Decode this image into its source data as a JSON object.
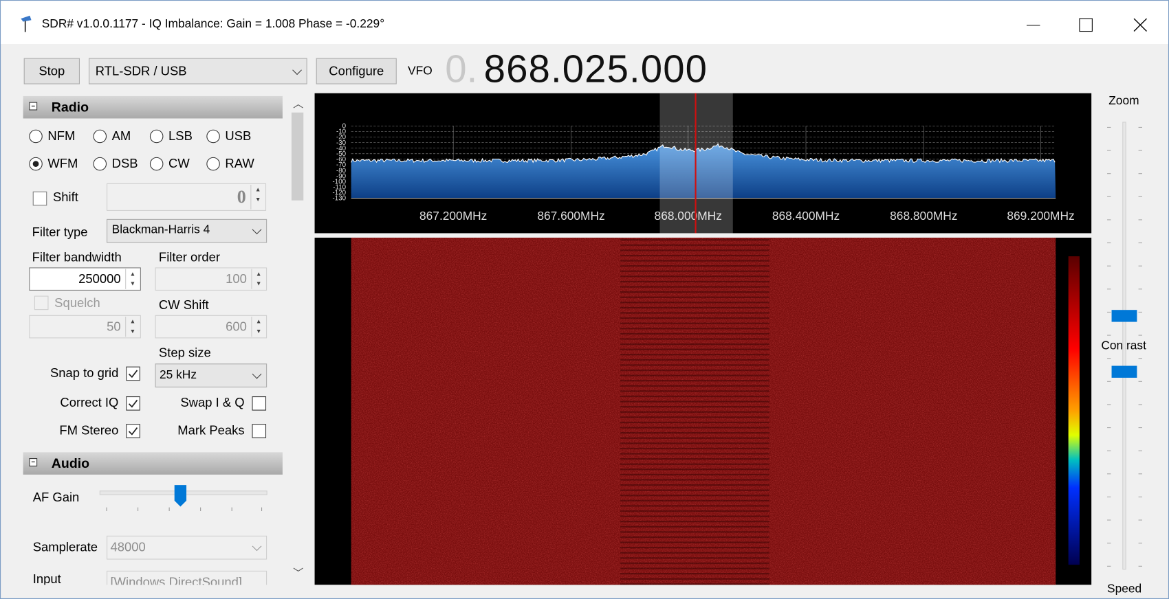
{
  "window": {
    "title": "SDR# v1.0.0.1177 - IQ Imbalance: Gain = 1.008 Phase = -0.229°"
  },
  "toolbar": {
    "stop": "Stop",
    "device": "RTL-SDR / USB",
    "configure": "Configure",
    "vfo_label": "VFO",
    "vfo_prefix": "0.",
    "vfo_frequency": "868.025.000"
  },
  "radio": {
    "header": "Radio",
    "modes": [
      "NFM",
      "AM",
      "LSB",
      "USB",
      "WFM",
      "DSB",
      "CW",
      "RAW"
    ],
    "selected_mode": "WFM",
    "shift_label": "Shift",
    "shift_value": "0",
    "filter_type_label": "Filter type",
    "filter_type": "Blackman-Harris 4",
    "filter_bandwidth_label": "Filter bandwidth",
    "filter_bandwidth": "250000",
    "filter_order_label": "Filter order",
    "filter_order": "100",
    "squelch_label": "Squelch",
    "squelch_value": "50",
    "cw_shift_label": "CW Shift",
    "cw_shift": "600",
    "step_size_label": "Step size",
    "step_size": "25 kHz",
    "checks": [
      {
        "label": "Snap to grid",
        "checked": true
      },
      {
        "label": "Correct IQ",
        "checked": true
      },
      {
        "label": "Swap I & Q",
        "checked": false
      },
      {
        "label": "FM Stereo",
        "checked": true
      },
      {
        "label": "Mark Peaks",
        "checked": false
      }
    ]
  },
  "audio": {
    "header": "Audio",
    "af_gain_label": "AF Gain",
    "samplerate_label": "Samplerate",
    "samplerate": "48000",
    "input_label": "Input",
    "input": "[Windows DirectSound]"
  },
  "spectrum": {
    "freq_labels": [
      "867.200MHz",
      "867.600MHz",
      "868.000MHz",
      "868.400MHz",
      "868.800MHz",
      "869.200MHz"
    ],
    "db_labels": [
      "0",
      "-10",
      "-20",
      "-30",
      "-40",
      "-50",
      "-60",
      "-70",
      "-80",
      "-90",
      "-100",
      "-110",
      "-120",
      "-130"
    ]
  },
  "side": {
    "zoom": "Zoom",
    "contrast": "Contrast",
    "speed": "Speed"
  }
}
